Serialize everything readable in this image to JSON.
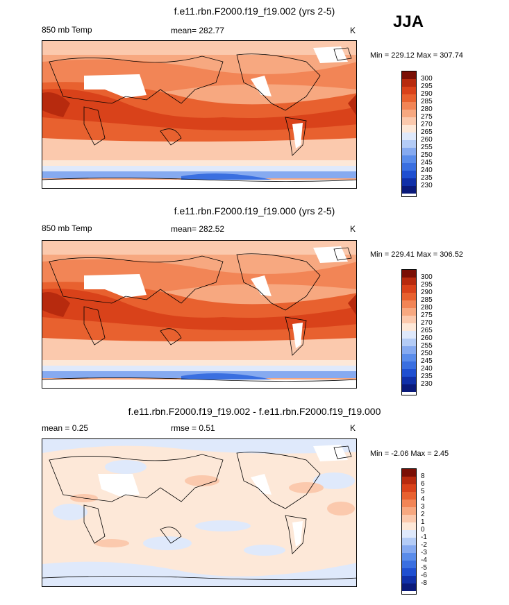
{
  "season": "JJA",
  "panels": [
    {
      "title": "f.e11.rbn.F2000.f19_f19.002 (yrs 2-5)",
      "variable": "850 mb Temp",
      "stat": "mean= 282.77",
      "units": "K",
      "minmax": "Min = 229.12 Max = 307.74",
      "colorbar_labels": [
        "300",
        "295",
        "290",
        "285",
        "280",
        "275",
        "270",
        "265",
        "260",
        "255",
        "250",
        "245",
        "240",
        "235",
        "230"
      ]
    },
    {
      "title": "f.e11.rbn.F2000.f19_f19.000 (yrs 2-5)",
      "variable": "850 mb Temp",
      "stat": "mean= 282.52",
      "units": "K",
      "minmax": "Min = 229.41 Max = 306.52",
      "colorbar_labels": [
        "300",
        "295",
        "290",
        "285",
        "280",
        "275",
        "270",
        "265",
        "260",
        "255",
        "250",
        "245",
        "240",
        "235",
        "230"
      ]
    },
    {
      "title": "f.e11.rbn.F2000.f19_f19.002 - f.e11.rbn.F2000.f19_f19.000",
      "variable": "mean =   0.25",
      "stat": "rmse =   0.51",
      "units": "K",
      "minmax": "Min =  -2.06 Max =   2.45",
      "colorbar_labels": [
        "8",
        "6",
        "5",
        "4",
        "3",
        "2",
        "1",
        "0",
        "-1",
        "-2",
        "-3",
        "-4",
        "-5",
        "-6",
        "-8"
      ]
    }
  ],
  "chart_data": [
    {
      "type": "heatmap",
      "title": "f.e11.rbn.F2000.f19_f19.002 (yrs 2-5)",
      "variable": "850 mb Temp",
      "units": "K",
      "mean": 282.77,
      "min": 229.12,
      "max": 307.74,
      "colorbar_levels": [
        230,
        235,
        240,
        245,
        250,
        255,
        260,
        265,
        270,
        275,
        280,
        285,
        290,
        295,
        300
      ],
      "colors": [
        "#0a1a7a",
        "#1030a8",
        "#1f4fd0",
        "#3a6fe0",
        "#5a8cea",
        "#86aaf0",
        "#b4ccf6",
        "#dfe9fb",
        "#fde8d8",
        "#fbc9ad",
        "#f7a880",
        "#f28556",
        "#e8612f",
        "#d9421a",
        "#b72a0e",
        "#7a0f05"
      ]
    },
    {
      "type": "heatmap",
      "title": "f.e11.rbn.F2000.f19_f19.000 (yrs 2-5)",
      "variable": "850 mb Temp",
      "units": "K",
      "mean": 282.52,
      "min": 229.41,
      "max": 306.52,
      "colorbar_levels": [
        230,
        235,
        240,
        245,
        250,
        255,
        260,
        265,
        270,
        275,
        280,
        285,
        290,
        295,
        300
      ],
      "colors": [
        "#0a1a7a",
        "#1030a8",
        "#1f4fd0",
        "#3a6fe0",
        "#5a8cea",
        "#86aaf0",
        "#b4ccf6",
        "#dfe9fb",
        "#fde8d8",
        "#fbc9ad",
        "#f7a880",
        "#f28556",
        "#e8612f",
        "#d9421a",
        "#b72a0e",
        "#7a0f05"
      ]
    },
    {
      "type": "heatmap",
      "title": "f.e11.rbn.F2000.f19_f19.002 - f.e11.rbn.F2000.f19_f19.000",
      "units": "K",
      "mean": 0.25,
      "rmse": 0.51,
      "min": -2.06,
      "max": 2.45,
      "colorbar_levels": [
        -8,
        -6,
        -5,
        -4,
        -3,
        -2,
        -1,
        0,
        1,
        2,
        3,
        4,
        5,
        6,
        8
      ],
      "colors": [
        "#0a1a7a",
        "#1030a8",
        "#1f4fd0",
        "#3a6fe0",
        "#5a8cea",
        "#86aaf0",
        "#b4ccf6",
        "#dfe9fb",
        "#fde8d8",
        "#fbc9ad",
        "#f7a880",
        "#f28556",
        "#e8612f",
        "#d9421a",
        "#b72a0e",
        "#7a0f05"
      ]
    }
  ]
}
